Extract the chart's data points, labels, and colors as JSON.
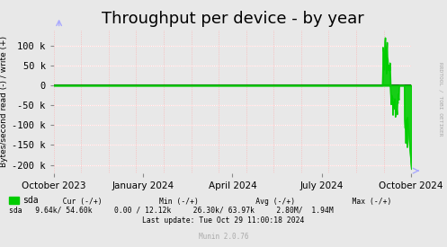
{
  "title": "Throughput per device - by year",
  "ylabel": "Bytes/second read (-) / write (+)",
  "background_color": "#e8e8e8",
  "plot_bg_color": "#e8e8e8",
  "grid_color_major": "#ffffff",
  "grid_color_minor": "#ffaaaa",
  "line_color": "#00cc00",
  "zero_line_color": "#000000",
  "arrow_color": "#aaaaff",
  "ylim": [
    -220000,
    140000
  ],
  "yticks": [
    -200000,
    -150000,
    -100000,
    -50000,
    0,
    50000,
    100000
  ],
  "ytick_labels": [
    "-200 k",
    "-150 k",
    "-100 k",
    "-50 k",
    "0",
    "50 k",
    "100 k"
  ],
  "xtick_labels": [
    "October 2023",
    "January 2024",
    "April 2024",
    "July 2024",
    "October 2024"
  ],
  "legend_label": "sda",
  "legend_color": "#00cc00",
  "footer_line3": "Last update: Tue Oct 29 11:00:18 2024",
  "munin_version": "Munin 2.0.76",
  "rrdtool_label": "RRDTOOL / TOBI OETIKER",
  "title_fontsize": 13,
  "axis_fontsize": 7.5,
  "footer_fontsize": 7
}
